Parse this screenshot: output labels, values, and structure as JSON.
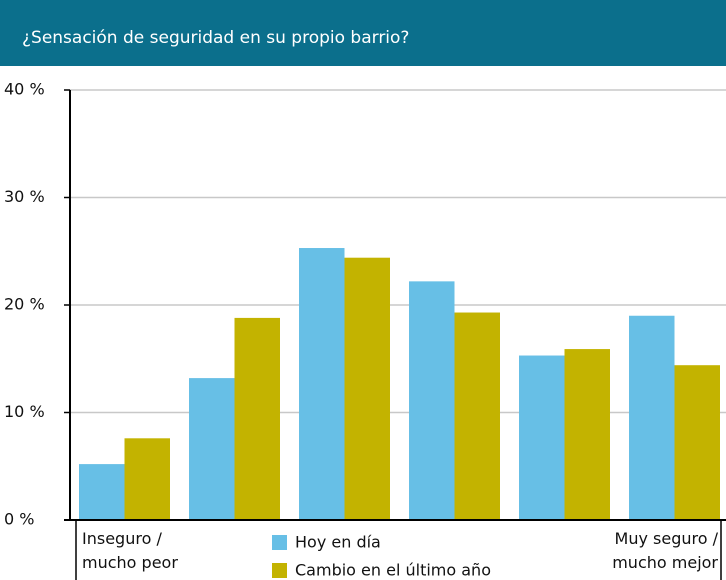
{
  "chart_data": {
    "type": "bar",
    "title": "¿Sensación de seguridad en su propio barrio?",
    "categories": [
      "Inseguro / mucho peor",
      null,
      null,
      null,
      null,
      "Muy seguro / mucho mejor"
    ],
    "series": [
      {
        "name": "Hoy en día",
        "color": "#67bfe6",
        "values": [
          5.2,
          13.2,
          25.3,
          22.2,
          15.3,
          19.0
        ]
      },
      {
        "name": "Cambio en el último año",
        "color": "#c3b300",
        "values": [
          7.6,
          18.8,
          24.4,
          19.3,
          15.9,
          14.4
        ]
      }
    ],
    "ylim": [
      0,
      40
    ],
    "yticks": [
      {
        "value": 0,
        "label": "0 %"
      },
      {
        "value": 10,
        "label": "10 %"
      },
      {
        "value": 20,
        "label": "20 %"
      },
      {
        "value": 30,
        "label": "30 %"
      },
      {
        "value": 40,
        "label": "40 %"
      }
    ],
    "grid": true,
    "legend": "bottom"
  }
}
